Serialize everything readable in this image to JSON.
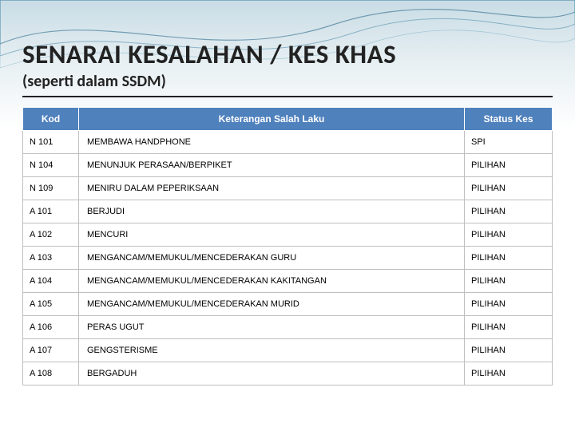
{
  "title": "SENARAI KESALAHAN / KES KHAS",
  "subtitle": "(seperti dalam SSDM)",
  "table": {
    "headers": {
      "kod": "Kod",
      "keterangan": "Keterangan Salah Laku",
      "status": "Status Kes"
    },
    "header_bg": "#4f81bd",
    "header_fg": "#ffffff",
    "header_fontsize": 12,
    "cell_fontsize": 11,
    "border_color": "#bfbfbf",
    "col_widths": {
      "kod": 70,
      "status": 110
    },
    "rows": [
      {
        "kod": "N 101",
        "keterangan": "MEMBAWA HANDPHONE",
        "status": "SPI"
      },
      {
        "kod": "N 104",
        "keterangan": "MENUNJUK PERASAAN/BERPIKET",
        "status": "PILIHAN"
      },
      {
        "kod": "N 109",
        "keterangan": "MENIRU DALAM PEPERIKSAAN",
        "status": "PILIHAN"
      },
      {
        "kod": "A 101",
        "keterangan": "BERJUDI",
        "status": "PILIHAN"
      },
      {
        "kod": "A 102",
        "keterangan": "MENCURI",
        "status": "PILIHAN"
      },
      {
        "kod": "A 103",
        "keterangan": "MENGANCAM/MEMUKUL/MENCEDERAKAN GURU",
        "status": "PILIHAN"
      },
      {
        "kod": "A 104",
        "keterangan": "MENGANCAM/MEMUKUL/MENCEDERAKAN KAKITANGAN",
        "status": "PILIHAN"
      },
      {
        "kod": "A 105",
        "keterangan": "MENGANCAM/MEMUKUL/MENCEDERAKAN MURID",
        "status": "PILIHAN"
      },
      {
        "kod": "A 106",
        "keterangan": "PERAS UGUT",
        "status": "PILIHAN"
      },
      {
        "kod": "A 107",
        "keterangan": "GENGSTERISME",
        "status": "PILIHAN"
      },
      {
        "kod": "A 108",
        "keterangan": "BERGADUH",
        "status": "PILIHAN"
      }
    ]
  },
  "colors": {
    "bg_gradient_top": "#c8dce5",
    "bg_gradient_bottom": "#ffffff",
    "title_color": "#222222",
    "underline_color": "#222222"
  },
  "typography": {
    "title_fontsize": 33,
    "title_weight": 700,
    "subtitle_fontsize": 20,
    "subtitle_weight": 700,
    "font_family": "Calibri, Arial, sans-serif"
  }
}
